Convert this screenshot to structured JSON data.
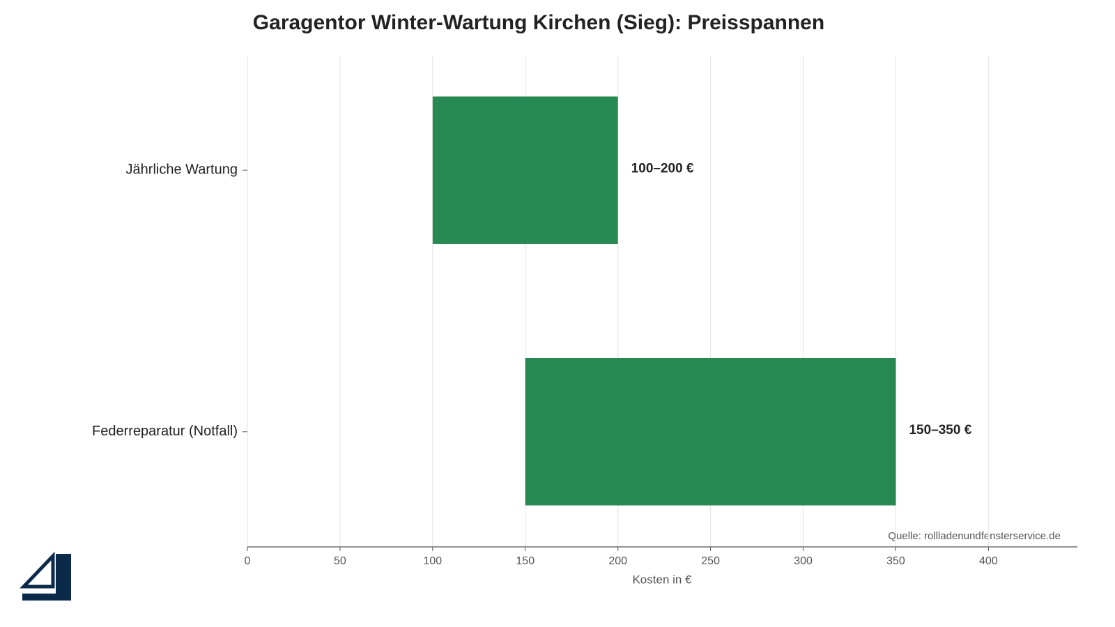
{
  "chart_data": {
    "type": "range_bar",
    "title": "Garagentor Winter-Wartung Kirchen (Sieg): Preisspannen",
    "categories": [
      "Jährliche Wartung",
      "Federreparatur (Notfall)"
    ],
    "low": [
      100,
      150
    ],
    "high": [
      200,
      350
    ],
    "value_labels": [
      "100–200 €",
      "150–350 €"
    ],
    "color": "#278a52",
    "xlim": [
      0,
      448
    ],
    "xticks": [
      0,
      50,
      100,
      150,
      200,
      250,
      300,
      350,
      400
    ],
    "xlabel": "Kosten in €",
    "grid": true,
    "source": "Quelle: rollladenundfensterservice.de"
  }
}
